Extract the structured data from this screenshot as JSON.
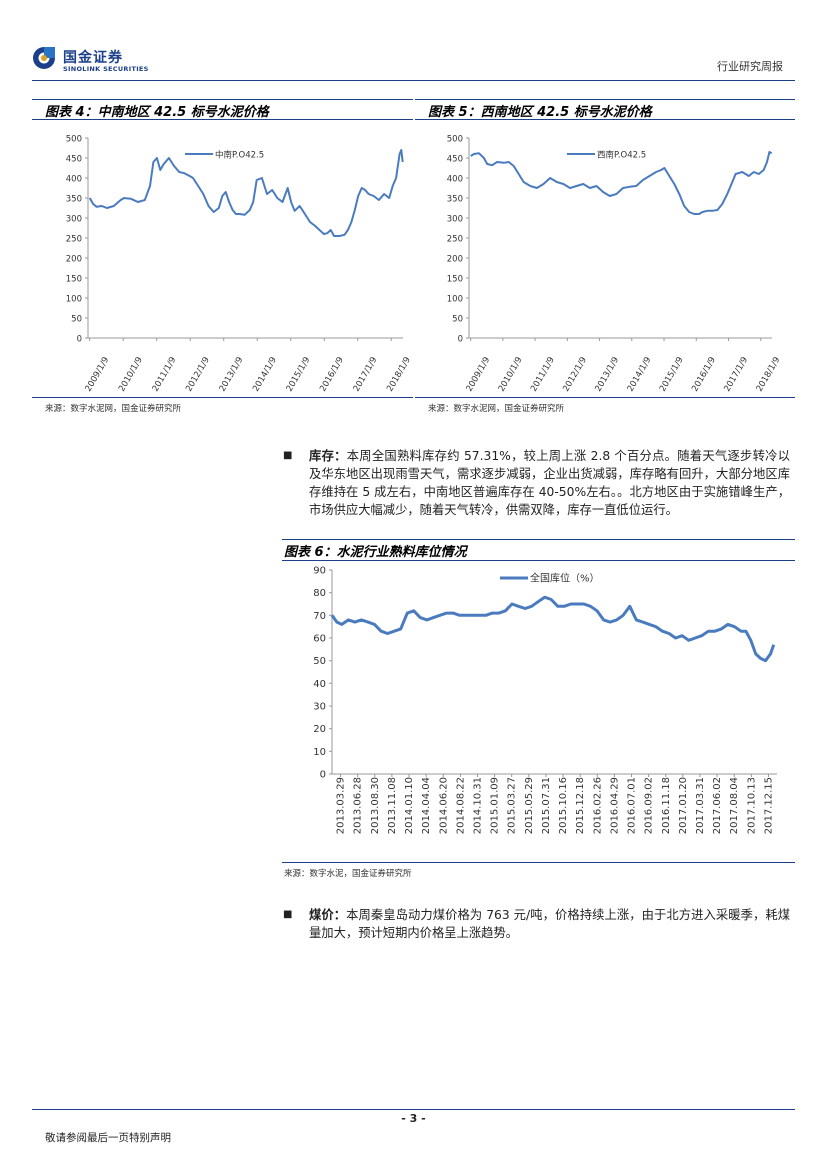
{
  "header": {
    "logo_cn": "国金证券",
    "logo_en": "SINOLINK SECURITIES",
    "report_type": "行业研究周报"
  },
  "figures": {
    "fig4": {
      "title": "图表 4：中南地区 42.5 标号水泥价格",
      "source": "来源：数字水泥网，国金证券研究所"
    },
    "fig5": {
      "title": "图表 5：西南地区 42.5 标号水泥价格",
      "source": "来源：数字水泥网，国金证券研究所"
    },
    "fig6": {
      "title": "图表 6：水泥行业熟料库位情况",
      "source": "来源：数字水泥，国金证券研究所"
    }
  },
  "chart_data": [
    {
      "type": "line",
      "id": "fig4",
      "title": "中南地区 42.5 标号水泥价格",
      "ylim": [
        0,
        500
      ],
      "yticks": [
        0,
        50,
        100,
        150,
        200,
        250,
        300,
        350,
        400,
        450,
        500
      ],
      "xtick_labels": [
        "2009/1/9",
        "2010/1/9",
        "2011/1/9",
        "2012/1/9",
        "2013/1/9",
        "2014/1/9",
        "2015/1/9",
        "2016/1/9",
        "2017/1/9",
        "2018/1/9"
      ],
      "x_range": [
        2008.95,
        2018.1
      ],
      "color": "#4a7bbf",
      "series": [
        {
          "name": "中南P.O42.5",
          "x": [
            2009.0,
            2009.1,
            2009.2,
            2009.35,
            2009.5,
            2009.7,
            2009.9,
            2010.0,
            2010.2,
            2010.4,
            2010.6,
            2010.75,
            2010.85,
            2010.95,
            2011.05,
            2011.15,
            2011.3,
            2011.45,
            2011.6,
            2011.75,
            2011.9,
            2012.0,
            2012.15,
            2012.3,
            2012.45,
            2012.6,
            2012.75,
            2012.85,
            2012.95,
            2013.05,
            2013.15,
            2013.25,
            2013.35,
            2013.5,
            2013.65,
            2013.75,
            2013.85,
            2014.0,
            2014.15,
            2014.3,
            2014.45,
            2014.6,
            2014.75,
            2014.85,
            2014.95,
            2015.1,
            2015.25,
            2015.4,
            2015.55,
            2015.7,
            2015.8,
            2015.9,
            2016.0,
            2016.1,
            2016.25,
            2016.4,
            2016.5,
            2016.6,
            2016.7,
            2016.8,
            2016.9,
            2017.0,
            2017.1,
            2017.25,
            2017.4,
            2017.55,
            2017.7,
            2017.8,
            2017.9,
            2018.0,
            2018.05,
            2018.09
          ],
          "values": [
            350,
            335,
            328,
            330,
            325,
            330,
            345,
            350,
            348,
            340,
            345,
            380,
            440,
            450,
            420,
            435,
            450,
            430,
            415,
            412,
            405,
            400,
            380,
            360,
            330,
            315,
            325,
            355,
            365,
            340,
            320,
            310,
            310,
            308,
            320,
            340,
            395,
            400,
            360,
            370,
            350,
            340,
            375,
            340,
            318,
            330,
            310,
            290,
            280,
            268,
            260,
            262,
            270,
            255,
            255,
            258,
            270,
            290,
            320,
            355,
            375,
            370,
            360,
            355,
            345,
            360,
            350,
            380,
            400,
            460,
            470,
            440
          ]
        }
      ]
    },
    {
      "type": "line",
      "id": "fig5",
      "title": "西南地区 42.5 标号水泥价格",
      "ylim": [
        0,
        500
      ],
      "yticks": [
        0,
        50,
        100,
        150,
        200,
        250,
        300,
        350,
        400,
        450,
        500
      ],
      "xtick_labels": [
        "2009/1/9",
        "2010/1/9",
        "2011/1/9",
        "2012/1/9",
        "2013/1/9",
        "2014/1/9",
        "2015/1/9",
        "2016/1/9",
        "2017/1/9",
        "2018/1/9"
      ],
      "x_range": [
        2008.95,
        2018.1
      ],
      "color": "#4a7bbf",
      "series": [
        {
          "name": "西南P.O42.5",
          "x": [
            2009.0,
            2009.1,
            2009.25,
            2009.4,
            2009.5,
            2009.65,
            2009.8,
            2010.0,
            2010.15,
            2010.3,
            2010.45,
            2010.6,
            2010.8,
            2011.0,
            2011.2,
            2011.4,
            2011.6,
            2011.8,
            2012.0,
            2012.2,
            2012.4,
            2012.6,
            2012.8,
            2013.0,
            2013.2,
            2013.4,
            2013.6,
            2013.8,
            2014.0,
            2014.2,
            2014.4,
            2014.6,
            2014.75,
            2014.85,
            2015.0,
            2015.15,
            2015.3,
            2015.45,
            2015.6,
            2015.75,
            2015.9,
            2016.0,
            2016.15,
            2016.3,
            2016.45,
            2016.6,
            2016.75,
            2016.9,
            2017.0,
            2017.2,
            2017.4,
            2017.55,
            2017.7,
            2017.85,
            2017.95,
            2018.02,
            2018.09
          ],
          "values": [
            455,
            460,
            462,
            450,
            435,
            432,
            440,
            438,
            440,
            430,
            410,
            390,
            380,
            375,
            385,
            400,
            390,
            385,
            375,
            380,
            385,
            375,
            380,
            365,
            355,
            360,
            375,
            378,
            380,
            395,
            405,
            415,
            420,
            425,
            405,
            385,
            360,
            330,
            315,
            310,
            310,
            315,
            318,
            318,
            320,
            335,
            360,
            390,
            410,
            415,
            405,
            415,
            410,
            420,
            440,
            465,
            462
          ]
        }
      ]
    },
    {
      "type": "line",
      "id": "fig6",
      "title": "水泥行业熟料库位情况",
      "ylim": [
        0,
        90
      ],
      "yticks": [
        0,
        10,
        20,
        30,
        40,
        50,
        60,
        70,
        80,
        90
      ],
      "xtick_labels": [
        "2013.03.29",
        "2013.06.28",
        "2013.08.30",
        "2013.11.08",
        "2014.01.10",
        "2014.04.04",
        "2014.06.20",
        "2014.08.22",
        "2014.10.31",
        "2015.01.09",
        "2015.03.27",
        "2015.05.29",
        "2015.07.31",
        "2015.10.16",
        "2015.12.18",
        "2016.02.26",
        "2016.04.29",
        "2016.07.01",
        "2016.09.02",
        "2016.11.18",
        "2017.01.20",
        "2017.03.31",
        "2017.06.02",
        "2017.08.04",
        "2017.10.13",
        "2017.12.15"
      ],
      "x_range": [
        0,
        27.2
      ],
      "color": "#4a7bbf",
      "series": [
        {
          "name": "全国库位（%）",
          "x": [
            0,
            0.3,
            0.6,
            1.0,
            1.4,
            1.8,
            2.2,
            2.6,
            3.0,
            3.4,
            3.8,
            4.2,
            4.6,
            5.0,
            5.4,
            5.8,
            6.2,
            6.6,
            7.0,
            7.4,
            7.8,
            8.2,
            8.6,
            9.0,
            9.4,
            9.8,
            10.2,
            10.6,
            11.0,
            11.4,
            11.8,
            12.2,
            12.6,
            13.0,
            13.4,
            13.8,
            14.2,
            14.6,
            15.0,
            15.4,
            15.8,
            16.2,
            16.6,
            17.0,
            17.4,
            17.8,
            18.2,
            18.6,
            19.0,
            19.4,
            19.8,
            20.2,
            20.6,
            21.0,
            21.4,
            21.8,
            22.2,
            22.6,
            23.0,
            23.4,
            23.8,
            24.2,
            24.6,
            25.0,
            25.3,
            25.6,
            25.9,
            26.2,
            26.5,
            26.8,
            27.0
          ],
          "values": [
            70,
            67,
            66,
            68,
            67,
            68,
            67,
            66,
            63,
            62,
            63,
            64,
            71,
            72,
            69,
            68,
            69,
            70,
            71,
            71,
            70,
            70,
            70,
            70,
            70,
            71,
            71,
            72,
            75,
            74,
            73,
            74,
            76,
            78,
            77,
            74,
            74,
            75,
            75,
            75,
            74,
            72,
            68,
            67,
            68,
            70,
            74,
            68,
            67,
            66,
            65,
            63,
            62,
            60,
            61,
            59,
            60,
            61,
            63,
            63,
            64,
            66,
            65,
            63,
            63,
            59,
            53,
            51,
            50,
            53,
            57
          ]
        }
      ]
    }
  ],
  "paragraphs": {
    "inventory_lead": "库存：",
    "inventory_text": "本周全国熟料库存约 57.31%，较上周上涨 2.8 个百分点。随着天气逐步转冷以及华东地区出现雨雪天气，需求逐步减弱，企业出货减弱，库存略有回升，大部分地区库存维持在 5 成左右，中南地区普遍库存在 40-50%左右。。北方地区由于实施错峰生产，市场供应大幅减少，随着天气转冷，供需双降，库存一直低位运行。",
    "coal_lead": "煤价：",
    "coal_text": "本周秦皇岛动力煤价格为 763 元/吨，价格持续上涨，由于北方进入采暖季，耗煤量加大，预计短期内价格呈上涨趋势。",
    "bullet_glyph": "■"
  },
  "footer": {
    "page_number": "- 3 -",
    "disclaimer": "敬请参阅最后一页特别声明"
  },
  "colors": {
    "brand": "#1c3f8a",
    "line": "#4a7bbf"
  }
}
